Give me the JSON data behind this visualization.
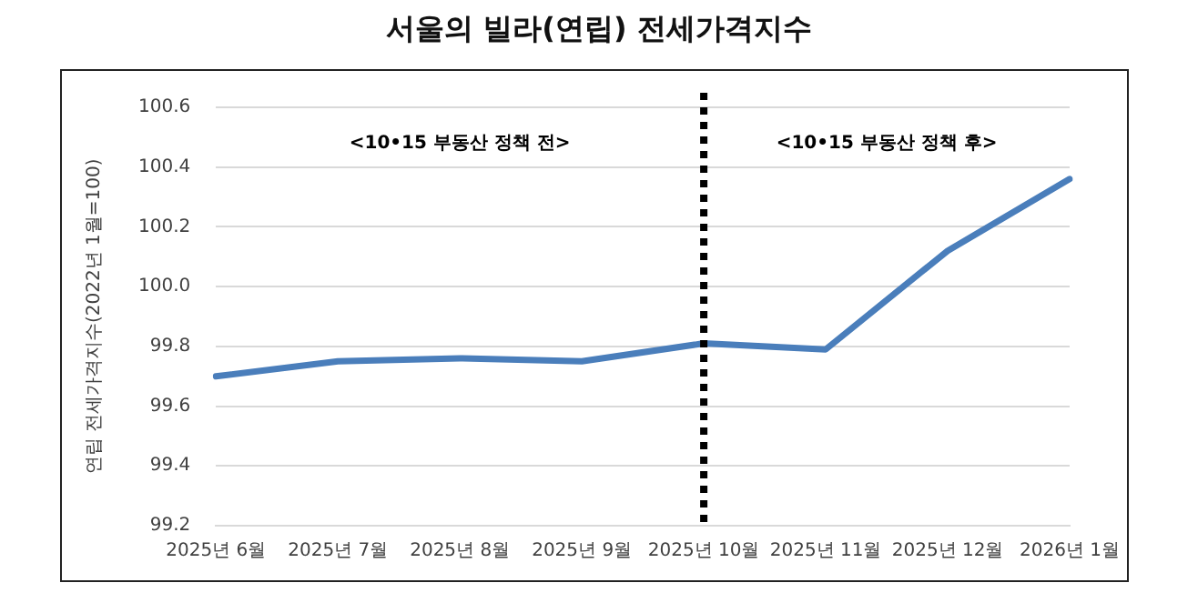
{
  "chart_data": {
    "type": "line",
    "title": "서울의 빌라(연립) 전세가격지수",
    "ylabel": "연립 전세가격지수(2022년 1월=100)",
    "categories": [
      "2025년 6월",
      "2025년 7월",
      "2025년 8월",
      "2025년 9월",
      "2025년 10월",
      "2025년 11월",
      "2025년 12월",
      "2026년 1월"
    ],
    "series": [
      {
        "color": "#4a7ebb",
        "values": [
          99.7,
          99.75,
          99.76,
          99.75,
          99.81,
          99.79,
          100.12,
          100.36
        ]
      }
    ],
    "ylim": [
      99.2,
      100.6
    ],
    "yticks": [
      99.2,
      99.4,
      99.6,
      99.8,
      {
        "value": 100,
        "label": "100.0"
      },
      100.2,
      100.4,
      100.6
    ],
    "ref_lines": [
      {
        "axis": "x",
        "value": "2025년 10월",
        "color": "#000000",
        "line_style": "dotted"
      }
    ],
    "annotations": [
      "<10•15 부동산 정책 전>",
      "<10•15 부동산 정책 후>"
    ],
    "grid": "y",
    "legend": false,
    "marker": "none",
    "line_style": "solid"
  }
}
